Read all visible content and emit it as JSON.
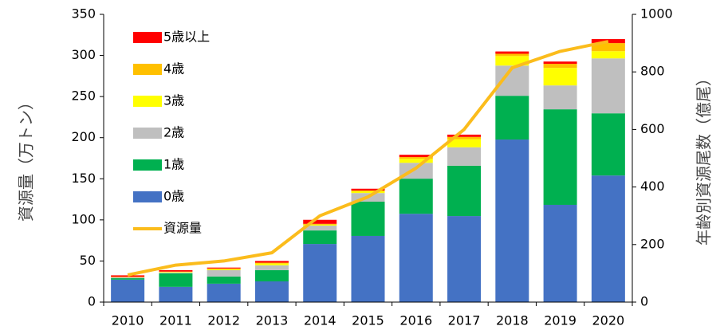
{
  "chart_data": {
    "type": "bar",
    "categories": [
      "2010",
      "2011",
      "2012",
      "2013",
      "2014",
      "2015",
      "2016",
      "2017",
      "2018",
      "2019",
      "2020"
    ],
    "y_label": "資源量（万トン）",
    "y2_label": "年齢別資源尾数（億尾）",
    "ylim": [
      0,
      350
    ],
    "yticks": [
      0,
      50,
      100,
      150,
      200,
      250,
      300,
      350
    ],
    "y2lim": [
      0,
      1000
    ],
    "y2ticks": [
      0,
      200,
      400,
      600,
      800,
      1000
    ],
    "stacked": true,
    "legend": "upper left",
    "series": [
      {
        "name": "0歳",
        "type": "bar",
        "axis": "y2",
        "color": "#4472c4",
        "values": [
          78,
          53,
          64,
          72,
          202,
          230,
          307,
          299,
          565,
          338,
          440
        ]
      },
      {
        "name": "1歳",
        "type": "bar",
        "axis": "y2",
        "color": "#00b050",
        "values": [
          5,
          47,
          25,
          39,
          47,
          119,
          122,
          175,
          152,
          332,
          216
        ]
      },
      {
        "name": "2歳",
        "type": "bar",
        "axis": "y2",
        "color": "#bfbfbf",
        "values": [
          3,
          3,
          22,
          17,
          17,
          30,
          55,
          64,
          105,
          83,
          191
        ]
      },
      {
        "name": "3歳",
        "type": "bar",
        "axis": "y2",
        "color": "#ffff00",
        "values": [
          1,
          2,
          3,
          6,
          3,
          6,
          14,
          28,
          33,
          61,
          25
        ]
      },
      {
        "name": "4歳",
        "type": "bar",
        "axis": "y2",
        "color": "#ffc000",
        "values": [
          1,
          1,
          3,
          3,
          3,
          3,
          6,
          8,
          8,
          14,
          28
        ]
      },
      {
        "name": "5歳以上",
        "type": "bar",
        "axis": "y2",
        "color": "#ff0000",
        "values": [
          5,
          5,
          3,
          6,
          14,
          6,
          8,
          8,
          8,
          8,
          14
        ]
      },
      {
        "name": "資源量",
        "type": "line",
        "color": "#fbbc1c",
        "values": [
          33,
          45,
          50,
          60,
          105,
          128,
          163,
          210,
          285,
          305,
          317
        ]
      }
    ]
  }
}
